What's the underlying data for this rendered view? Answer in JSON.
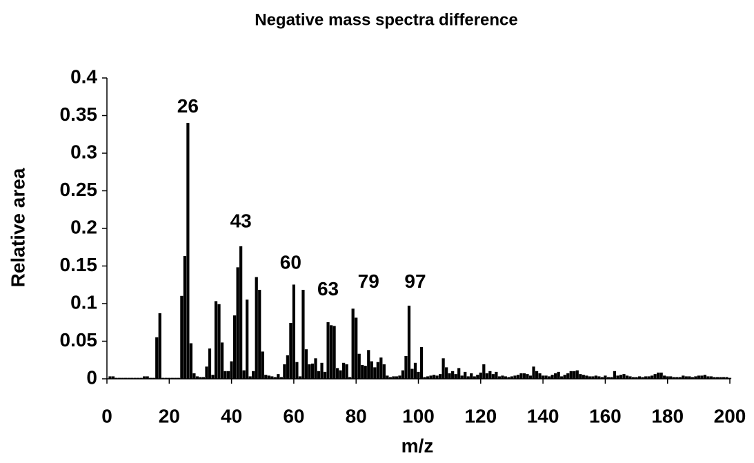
{
  "chart_data": {
    "type": "bar",
    "title": "Negative mass spectra difference",
    "x_label": "m/z",
    "y_label": "Relative area",
    "x": [
      1,
      2,
      3,
      4,
      5,
      6,
      7,
      8,
      9,
      10,
      11,
      12,
      13,
      14,
      15,
      16,
      17,
      18,
      19,
      20,
      21,
      22,
      23,
      24,
      25,
      26,
      27,
      28,
      29,
      30,
      31,
      32,
      33,
      34,
      35,
      36,
      37,
      38,
      39,
      40,
      41,
      42,
      43,
      44,
      45,
      46,
      47,
      48,
      49,
      50,
      51,
      52,
      53,
      54,
      55,
      56,
      57,
      58,
      59,
      60,
      61,
      62,
      63,
      64,
      65,
      66,
      67,
      68,
      69,
      70,
      71,
      72,
      73,
      74,
      75,
      76,
      77,
      78,
      79,
      80,
      81,
      82,
      83,
      84,
      85,
      86,
      87,
      88,
      89,
      90,
      91,
      92,
      93,
      94,
      95,
      96,
      97,
      98,
      99,
      100,
      101,
      102,
      103,
      104,
      105,
      106,
      107,
      108,
      109,
      110,
      111,
      112,
      113,
      114,
      115,
      116,
      117,
      118,
      119,
      120,
      121,
      122,
      123,
      124,
      125,
      126,
      127,
      128,
      129,
      130,
      131,
      132,
      133,
      134,
      135,
      136,
      137,
      138,
      139,
      140,
      141,
      142,
      143,
      144,
      145,
      146,
      147,
      148,
      149,
      150,
      151,
      152,
      153,
      154,
      155,
      156,
      157,
      158,
      159,
      160,
      161,
      162,
      163,
      164,
      165,
      166,
      167,
      168,
      169,
      170,
      171,
      172,
      173,
      174,
      175,
      176,
      177,
      178,
      179,
      180,
      181,
      182,
      183,
      184,
      185,
      186,
      187,
      188,
      189,
      190,
      191,
      192,
      193,
      194,
      195,
      196,
      197,
      198,
      199,
      200
    ],
    "values": [
      0.003,
      0.003,
      0.001,
      0.001,
      0.001,
      0.001,
      0.001,
      0.001,
      0.001,
      0.001,
      0.001,
      0.003,
      0.003,
      0.001,
      0.001,
      0.055,
      0.087,
      0.001,
      0.001,
      0.001,
      0.001,
      0.001,
      0.001,
      0.11,
      0.163,
      0.34,
      0.047,
      0.007,
      0.003,
      0.002,
      0.002,
      0.016,
      0.04,
      0.005,
      0.103,
      0.099,
      0.048,
      0.01,
      0.01,
      0.023,
      0.084,
      0.148,
      0.176,
      0.011,
      0.105,
      0.003,
      0.01,
      0.135,
      0.118,
      0.036,
      0.005,
      0.004,
      0.003,
      0.002,
      0.006,
      0.002,
      0.019,
      0.031,
      0.074,
      0.125,
      0.022,
      0.003,
      0.118,
      0.039,
      0.019,
      0.02,
      0.027,
      0.01,
      0.021,
      0.009,
      0.075,
      0.071,
      0.07,
      0.014,
      0.011,
      0.021,
      0.019,
      0.002,
      0.093,
      0.081,
      0.033,
      0.018,
      0.017,
      0.038,
      0.023,
      0.015,
      0.022,
      0.028,
      0.019,
      0.004,
      0.002,
      0.003,
      0.003,
      0.004,
      0.011,
      0.03,
      0.097,
      0.013,
      0.021,
      0.009,
      0.042,
      0.002,
      0.003,
      0.004,
      0.005,
      0.004,
      0.006,
      0.027,
      0.015,
      0.007,
      0.01,
      0.006,
      0.014,
      0.004,
      0.009,
      0.003,
      0.007,
      0.003,
      0.005,
      0.008,
      0.019,
      0.007,
      0.01,
      0.006,
      0.009,
      0.003,
      0.004,
      0.003,
      0.002,
      0.003,
      0.004,
      0.005,
      0.007,
      0.007,
      0.006,
      0.004,
      0.016,
      0.01,
      0.007,
      0.004,
      0.004,
      0.003,
      0.005,
      0.007,
      0.009,
      0.003,
      0.005,
      0.007,
      0.01,
      0.01,
      0.011,
      0.006,
      0.005,
      0.004,
      0.003,
      0.003,
      0.004,
      0.003,
      0.002,
      0.004,
      0.002,
      0.002,
      0.01,
      0.004,
      0.005,
      0.006,
      0.004,
      0.003,
      0.002,
      0.002,
      0.003,
      0.002,
      0.003,
      0.003,
      0.004,
      0.006,
      0.008,
      0.008,
      0.004,
      0.003,
      0.003,
      0.002,
      0.002,
      0.002,
      0.004,
      0.003,
      0.003,
      0.002,
      0.003,
      0.004,
      0.004,
      0.005,
      0.003,
      0.003,
      0.002,
      0.002,
      0.002,
      0.002,
      0.002,
      0.001
    ],
    "color": "#000000",
    "xlim": [
      0,
      200
    ],
    "xticks": [
      0,
      20,
      40,
      60,
      80,
      100,
      120,
      140,
      160,
      180,
      200
    ],
    "ylim": [
      0,
      0.4
    ],
    "yticks": [
      0,
      0.05,
      0.1,
      0.15,
      0.2,
      0.25,
      0.3,
      0.35,
      0.4
    ],
    "grid": false,
    "annotations": [
      {
        "text": "26",
        "x": 26,
        "y": 0.361
      },
      {
        "text": "43",
        "x": 43,
        "y": 0.208
      },
      {
        "text": "60",
        "x": 59,
        "y": 0.153
      },
      {
        "text": "63",
        "x": 71,
        "y": 0.118
      },
      {
        "text": "79",
        "x": 84,
        "y": 0.128
      },
      {
        "text": "97",
        "x": 99,
        "y": 0.128
      }
    ]
  }
}
